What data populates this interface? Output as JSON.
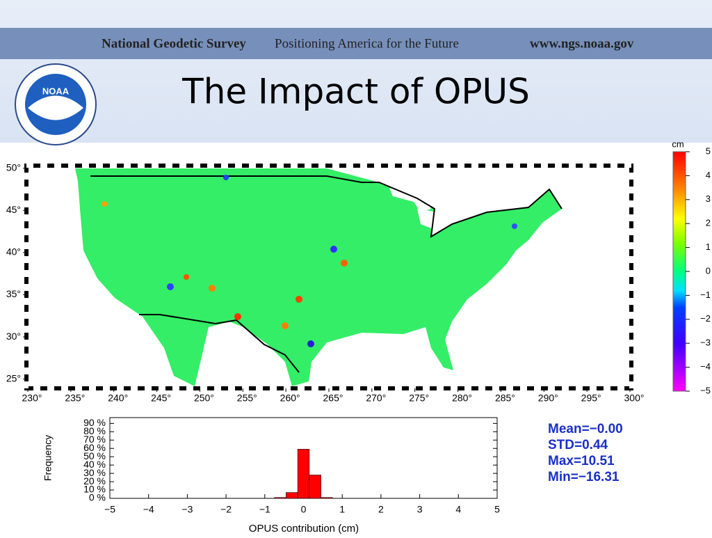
{
  "header": {
    "org": "National Geodetic Survey",
    "slogan": "Positioning America for the Future",
    "url": "www.ngs.noaa.gov",
    "logo": "NOAA"
  },
  "title": "The Impact of OPUS",
  "map": {
    "xlim": [
      230,
      300
    ],
    "ylim": [
      23.9,
      50.3
    ],
    "xticks": [
      {
        "value": 230,
        "label": "230°"
      },
      {
        "value": 235,
        "label": "235°"
      },
      {
        "value": 240,
        "label": "240°"
      },
      {
        "value": 245,
        "label": "245°"
      },
      {
        "value": 250,
        "label": "250°"
      },
      {
        "value": 255,
        "label": "255°"
      },
      {
        "value": 260,
        "label": "260°"
      },
      {
        "value": 265,
        "label": "265°"
      },
      {
        "value": 270,
        "label": "270°"
      },
      {
        "value": 275,
        "label": "275°"
      },
      {
        "value": 280,
        "label": "280°"
      },
      {
        "value": 285,
        "label": "285°"
      },
      {
        "value": 290,
        "label": "290°"
      },
      {
        "value": 295,
        "label": "295°"
      },
      {
        "value": 300,
        "label": "300°"
      }
    ],
    "yticks": [
      {
        "value": 25,
        "label": "25°"
      },
      {
        "value": 30,
        "label": "30°"
      },
      {
        "value": 35,
        "label": "35°"
      },
      {
        "value": 40,
        "label": "40°"
      },
      {
        "value": 45,
        "label": "45°"
      },
      {
        "value": 50,
        "label": "50°"
      }
    ],
    "colorbar": {
      "unit": "cm",
      "lim": [
        -5,
        5
      ],
      "ticks": [
        5,
        4,
        3,
        2,
        1,
        0,
        {
          "value": -1,
          "label": "−1"
        },
        {
          "value": -2,
          "label": "−2"
        },
        {
          "value": -3,
          "label": "−3"
        },
        {
          "value": -4,
          "label": "−4"
        },
        {
          "value": -5,
          "label": "−5"
        }
      ]
    }
  },
  "chart_data": {
    "type": "histogram",
    "xlabel": "OPUS contribution (cm)",
    "ylabel": "Frequency",
    "bins": [
      -0.75,
      -0.45,
      -0.15,
      0.15,
      0.45,
      0.75
    ],
    "values": [
      1,
      7,
      59,
      28,
      1
    ],
    "color": "#ff0000",
    "xlim": [
      -5,
      5
    ],
    "ylim": [
      0,
      97
    ],
    "xticks": [
      {
        "value": -5,
        "label": "−5"
      },
      {
        "value": -4,
        "label": "−4"
      },
      {
        "value": -3,
        "label": "−3"
      },
      {
        "value": -2,
        "label": "−2"
      },
      {
        "value": -1,
        "label": "−1"
      },
      0,
      1,
      2,
      3,
      4,
      5
    ],
    "yticks": [
      {
        "value": 0,
        "label": "0 %"
      },
      {
        "value": 10,
        "label": "10 %"
      },
      {
        "value": 20,
        "label": "20 %"
      },
      {
        "value": 30,
        "label": "30 %"
      },
      {
        "value": 40,
        "label": "40 %"
      },
      {
        "value": 50,
        "label": "50 %"
      },
      {
        "value": 60,
        "label": "60 %"
      },
      {
        "value": 70,
        "label": "70 %"
      },
      {
        "value": 80,
        "label": "80 %"
      },
      {
        "value": 90,
        "label": "90 %"
      }
    ]
  },
  "stats": [
    "Mean=−0.00",
    "STD=0.44",
    "Max=10.51",
    "Min=−16.31"
  ]
}
